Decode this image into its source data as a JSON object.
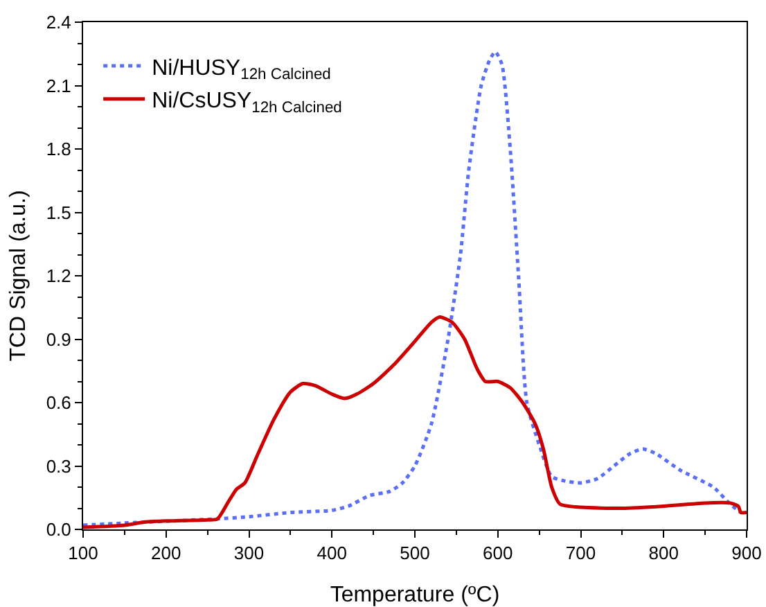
{
  "chart_data": {
    "type": "line",
    "xlabel": "Temperature (ºC)",
    "ylabel": "TCD Signal (a.u.)",
    "xlim": [
      100,
      900
    ],
    "xticks": [
      100,
      200,
      300,
      400,
      500,
      600,
      700,
      800,
      900
    ],
    "ylim": [
      0,
      2.4
    ],
    "yticks": [
      {
        "value": 0,
        "label": "0.0"
      },
      {
        "value": 0.3,
        "label": "0.3"
      },
      {
        "value": 0.6,
        "label": "0.6"
      },
      {
        "value": 0.9,
        "label": "0.9"
      },
      {
        "value": 1.2,
        "label": "1.2"
      },
      {
        "value": 1.5,
        "label": "1.5"
      },
      {
        "value": 1.8,
        "label": "1.8"
      },
      {
        "value": 2.1,
        "label": "2.1"
      },
      {
        "value": 2.4,
        "label": "2.4"
      }
    ],
    "grid": false,
    "legend": "top left",
    "series": [
      {
        "name": "Ni/HUSY$_{12h Calcined}$",
        "color": "#5b6ff5",
        "line_style": "dotted",
        "x": [
          100,
          150,
          263,
          300,
          350,
          400,
          420,
          445,
          470,
          485,
          500,
          520,
          540,
          555,
          565,
          580,
          590,
          597,
          605,
          615,
          625,
          635,
          650,
          665,
          680,
          700,
          720,
          740,
          760,
          775,
          790,
          820,
          860,
          880,
          893
        ],
        "values": [
          0.02,
          0.03,
          0.05,
          0.06,
          0.08,
          0.09,
          0.11,
          0.16,
          0.18,
          0.22,
          0.3,
          0.5,
          0.9,
          1.3,
          1.7,
          2.1,
          2.22,
          2.26,
          2.2,
          1.8,
          1.2,
          0.6,
          0.4,
          0.25,
          0.23,
          0.22,
          0.24,
          0.3,
          0.36,
          0.38,
          0.36,
          0.28,
          0.2,
          0.12,
          0.08
        ]
      },
      {
        "name": "Ni/CsUSY$_{12h Calcined}$",
        "color": "#cc0000",
        "line_style": "solid",
        "x": [
          100,
          150,
          175,
          200,
          250,
          262,
          275,
          285,
          295,
          310,
          330,
          350,
          365,
          380,
          400,
          415,
          430,
          450,
          475,
          500,
          520,
          530,
          545,
          560,
          575,
          585,
          600,
          615,
          630,
          645,
          655,
          665,
          675,
          700,
          750,
          800,
          850,
          880,
          890,
          893,
          900
        ],
        "values": [
          0.01,
          0.02,
          0.035,
          0.04,
          0.045,
          0.05,
          0.13,
          0.19,
          0.22,
          0.35,
          0.52,
          0.65,
          0.69,
          0.68,
          0.64,
          0.62,
          0.64,
          0.69,
          0.78,
          0.89,
          0.98,
          1.005,
          0.98,
          0.9,
          0.76,
          0.7,
          0.7,
          0.67,
          0.6,
          0.5,
          0.38,
          0.2,
          0.12,
          0.105,
          0.1,
          0.11,
          0.125,
          0.125,
          0.11,
          0.08,
          0.08
        ]
      }
    ]
  }
}
